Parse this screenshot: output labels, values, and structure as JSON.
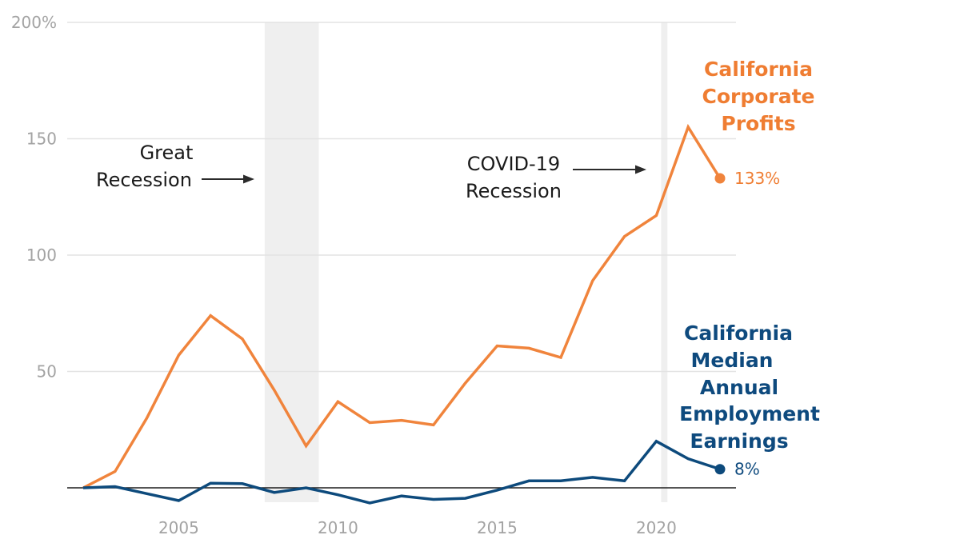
{
  "chart_data": {
    "type": "line",
    "title": "",
    "xlabel": "",
    "ylabel": "",
    "xlim": [
      2002,
      2022
    ],
    "ylim": [
      0,
      200
    ],
    "x_ticks": [
      2005,
      2010,
      2015,
      2020
    ],
    "y_ticks": [
      {
        "value": 200,
        "label": "200%"
      },
      {
        "value": 150,
        "label": "150"
      },
      {
        "value": 100,
        "label": "100"
      },
      {
        "value": 50,
        "label": "50"
      }
    ],
    "grid": true,
    "baseline": 0,
    "x": [
      2002,
      2003,
      2004,
      2005,
      2006,
      2007,
      2008,
      2009,
      2010,
      2011,
      2012,
      2013,
      2014,
      2015,
      2016,
      2017,
      2018,
      2019,
      2020,
      2021,
      2022
    ],
    "series": [
      {
        "name": "California Corporate Profits",
        "label_lines": [
          "California",
          "Corporate",
          "Profits"
        ],
        "color": "#f0843c",
        "label_color": "#ef7d32",
        "end_label": "133%",
        "values": [
          0,
          7,
          30,
          57,
          74,
          64,
          42,
          18,
          37,
          28,
          29,
          27,
          45,
          61,
          60,
          56,
          89,
          108,
          117,
          155,
          133
        ]
      },
      {
        "name": "California Median Annual Employment Earnings",
        "label_lines": [
          "California",
          "Median",
          "Annual",
          "Employment",
          "Earnings"
        ],
        "color": "#0d4a7c",
        "label_color": "#0e4a7e",
        "end_label": "8%",
        "values": [
          0,
          0.5,
          -2.5,
          -5.5,
          2,
          1.8,
          -2,
          0,
          -3,
          -6.5,
          -3.5,
          -5,
          -4.5,
          -1,
          3,
          3,
          4.5,
          3,
          20,
          12.5,
          8
        ]
      }
    ],
    "shaded_periods": [
      {
        "name": "Great Recession",
        "start": 2007.7,
        "end": 2009.4
      },
      {
        "name": "COVID-19 Recession",
        "start": 2020.15,
        "end": 2020.35
      }
    ],
    "annotations": [
      {
        "lines": [
          "Great",
          "Recession"
        ]
      },
      {
        "lines": [
          "COVID-19",
          "Recession"
        ]
      }
    ]
  }
}
